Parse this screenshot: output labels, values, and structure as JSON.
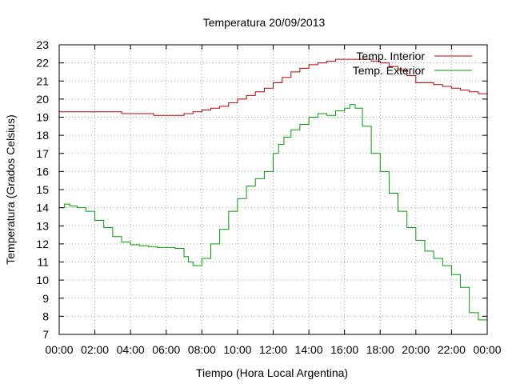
{
  "chart_data": {
    "type": "line",
    "title": "Temperatura 20/09/2013",
    "xlabel": "Tiempo (Hora Local Argentina)",
    "ylabel": "Temperatura (Grados Celsius)",
    "xlim": [
      0,
      24
    ],
    "ylim": [
      7,
      23
    ],
    "xticks": [
      0,
      2,
      4,
      6,
      8,
      10,
      12,
      14,
      16,
      18,
      20,
      22,
      24
    ],
    "xtick_labels": [
      "00:00",
      "02:00",
      "04:00",
      "06:00",
      "08:00",
      "10:00",
      "12:00",
      "14:00",
      "16:00",
      "18:00",
      "20:00",
      "22:00",
      "00:00"
    ],
    "yticks": [
      7,
      8,
      9,
      10,
      11,
      12,
      13,
      14,
      15,
      16,
      17,
      18,
      19,
      20,
      21,
      22,
      23
    ],
    "grid": true,
    "legend_position": "top-right",
    "series": [
      {
        "name": "Temp. Interior",
        "color": "#c00000",
        "x": [
          0,
          1,
          2,
          3,
          3.5,
          4,
          5,
          5.3,
          6,
          6.5,
          7,
          7.5,
          8,
          8.5,
          9,
          9.5,
          10,
          10.5,
          11,
          11.5,
          12,
          12.5,
          13,
          13.5,
          14,
          14.5,
          15,
          15.5,
          16,
          16.5,
          17,
          17.5,
          18,
          18.5,
          19,
          19.5,
          20,
          20.5,
          21,
          21.5,
          22,
          22.5,
          23,
          23.5,
          24
        ],
        "y": [
          19.3,
          19.3,
          19.3,
          19.3,
          19.2,
          19.2,
          19.2,
          19.1,
          19.1,
          19.1,
          19.2,
          19.3,
          19.4,
          19.5,
          19.6,
          19.8,
          20.0,
          20.2,
          20.4,
          20.6,
          20.9,
          21.2,
          21.5,
          21.7,
          21.9,
          22.0,
          22.1,
          22.2,
          22.2,
          22.2,
          22.2,
          22.1,
          22.0,
          21.8,
          21.6,
          21.3,
          20.9,
          20.9,
          20.8,
          20.7,
          20.6,
          20.5,
          20.4,
          20.3,
          20.1
        ]
      },
      {
        "name": "Temp. Exterior",
        "color": "#00a000",
        "x": [
          0,
          0.3,
          0.6,
          1,
          1.5,
          2,
          2.5,
          3,
          3.5,
          4,
          4.5,
          5,
          5.5,
          6,
          6.5,
          7,
          7.25,
          7.5,
          7.75,
          8,
          8.5,
          9,
          9.5,
          10,
          10.5,
          11,
          11.5,
          12,
          12.3,
          12.6,
          13,
          13.5,
          14,
          14.5,
          15,
          15.5,
          16,
          16.3,
          16.6,
          17,
          17.5,
          18,
          18.5,
          19,
          19.5,
          20,
          20.5,
          21,
          21.5,
          22,
          22.5,
          23,
          23.5,
          24
        ],
        "y": [
          14.0,
          14.2,
          14.1,
          14.0,
          13.8,
          13.3,
          12.9,
          12.4,
          12.1,
          11.95,
          11.9,
          11.85,
          11.8,
          11.8,
          11.75,
          11.3,
          11.0,
          10.8,
          10.8,
          11.2,
          12.0,
          12.8,
          13.8,
          14.5,
          15.2,
          15.6,
          16.0,
          17.0,
          17.5,
          17.9,
          18.3,
          18.6,
          19.0,
          19.2,
          19.1,
          19.35,
          19.5,
          19.7,
          19.5,
          18.5,
          17.0,
          16.0,
          14.8,
          13.8,
          12.9,
          12.2,
          11.6,
          11.2,
          10.8,
          10.3,
          9.6,
          8.2,
          7.8,
          7.5
        ]
      }
    ]
  }
}
